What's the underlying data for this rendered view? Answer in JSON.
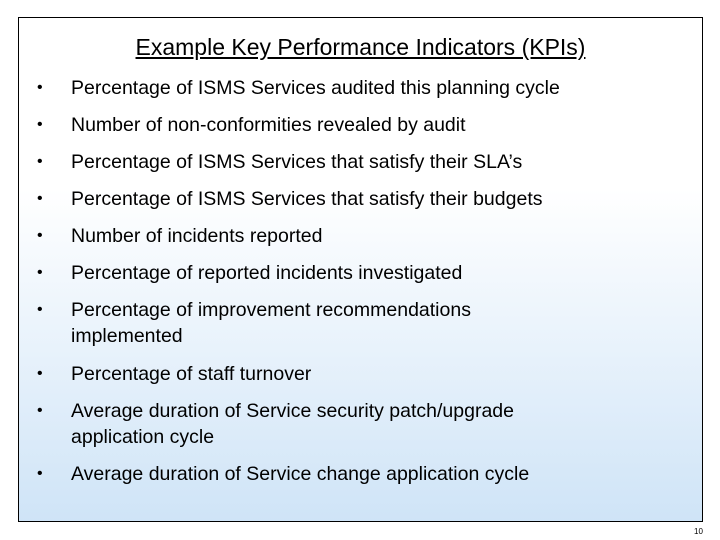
{
  "slide": {
    "title": "Example Key Performance Indicators (KPIs)",
    "bullet_symbol": "•",
    "bullets": [
      {
        "lines": [
          "Percentage of ISMS Services audited this planning cycle"
        ]
      },
      {
        "lines": [
          "Number of non-conformities revealed by audit"
        ]
      },
      {
        "lines": [
          "Percentage of ISMS Services that satisfy their SLA’s"
        ]
      },
      {
        "lines": [
          "Percentage of ISMS Services that satisfy their budgets"
        ]
      },
      {
        "lines": [
          "Number of incidents reported"
        ]
      },
      {
        "lines": [
          "Percentage of reported incidents investigated"
        ]
      },
      {
        "lines": [
          "Percentage of improvement recommendations",
          "implemented"
        ]
      },
      {
        "lines": [
          "Percentage of staff turnover"
        ]
      },
      {
        "lines": [
          "Average duration of Service security patch/upgrade",
          "application cycle"
        ]
      },
      {
        "lines": [
          "Average duration of Service change application cycle"
        ]
      }
    ],
    "page_number": "10"
  },
  "colors": {
    "background_top": "#ffffff",
    "background_bottom": "#cfe4f7",
    "border": "#000000",
    "text": "#000000"
  }
}
